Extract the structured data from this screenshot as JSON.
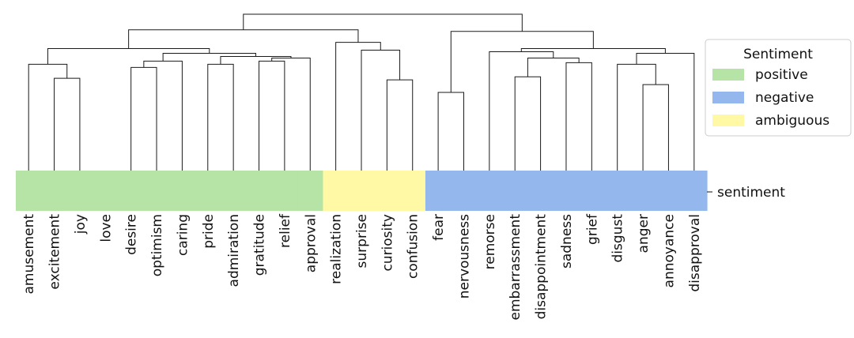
{
  "diagram": {
    "type": "dendrogram-with-category-strip",
    "row_label": "sentiment",
    "leaves": [
      {
        "name": "amusement",
        "sentiment": "positive"
      },
      {
        "name": "excitement",
        "sentiment": "positive"
      },
      {
        "name": "joy",
        "sentiment": "positive"
      },
      {
        "name": "love",
        "sentiment": "positive"
      },
      {
        "name": "desire",
        "sentiment": "positive"
      },
      {
        "name": "optimism",
        "sentiment": "positive"
      },
      {
        "name": "caring",
        "sentiment": "positive"
      },
      {
        "name": "pride",
        "sentiment": "positive"
      },
      {
        "name": "admiration",
        "sentiment": "positive"
      },
      {
        "name": "gratitude",
        "sentiment": "positive"
      },
      {
        "name": "relief",
        "sentiment": "positive"
      },
      {
        "name": "approval",
        "sentiment": "positive"
      },
      {
        "name": "realization",
        "sentiment": "ambiguous"
      },
      {
        "name": "surprise",
        "sentiment": "ambiguous"
      },
      {
        "name": "curiosity",
        "sentiment": "ambiguous"
      },
      {
        "name": "confusion",
        "sentiment": "ambiguous"
      },
      {
        "name": "fear",
        "sentiment": "negative"
      },
      {
        "name": "nervousness",
        "sentiment": "negative"
      },
      {
        "name": "remorse",
        "sentiment": "negative"
      },
      {
        "name": "embarrassment",
        "sentiment": "negative"
      },
      {
        "name": "disappointment",
        "sentiment": "negative"
      },
      {
        "name": "sadness",
        "sentiment": "negative"
      },
      {
        "name": "grief",
        "sentiment": "negative"
      },
      {
        "name": "disgust",
        "sentiment": "negative"
      },
      {
        "name": "anger",
        "sentiment": "negative"
      },
      {
        "name": "annoyance",
        "sentiment": "negative"
      },
      {
        "name": "disapproval",
        "sentiment": "negative"
      }
    ],
    "merges": [
      {
        "a": 1,
        "b": 2,
        "height": 0.59
      },
      {
        "a": 0,
        "b": 27,
        "height": 0.68
      },
      {
        "a": 4,
        "b": 5,
        "height": 0.66
      },
      {
        "a": 29,
        "b": 6,
        "height": 0.7
      },
      {
        "a": 7,
        "b": 8,
        "height": 0.68
      },
      {
        "a": 9,
        "b": 10,
        "height": 0.7
      },
      {
        "a": 32,
        "b": 11,
        "height": 0.72
      },
      {
        "a": 31,
        "b": 33,
        "height": 0.73
      },
      {
        "a": 30,
        "b": 34,
        "height": 0.75
      },
      {
        "a": 28,
        "b": 35,
        "height": 0.78
      },
      {
        "a": 14,
        "b": 15,
        "height": 0.58
      },
      {
        "a": 13,
        "b": 37,
        "height": 0.77
      },
      {
        "a": 12,
        "b": 38,
        "height": 0.82
      },
      {
        "a": 36,
        "b": 39,
        "height": 0.9
      },
      {
        "a": 16,
        "b": 17,
        "height": 0.5
      },
      {
        "a": 19,
        "b": 20,
        "height": 0.6
      },
      {
        "a": 21,
        "b": 22,
        "height": 0.69
      },
      {
        "a": 42,
        "b": 43,
        "height": 0.72
      },
      {
        "a": 18,
        "b": 44,
        "height": 0.76
      },
      {
        "a": 24,
        "b": 25,
        "height": 0.55
      },
      {
        "a": 23,
        "b": 46,
        "height": 0.68
      },
      {
        "a": 47,
        "b": 26,
        "height": 0.75
      },
      {
        "a": 45,
        "b": 48,
        "height": 0.78
      },
      {
        "a": 41,
        "b": 49,
        "height": 0.89
      },
      {
        "a": 50,
        "b": 40,
        "height": 1.0
      }
    ],
    "legend": {
      "title": "Sentiment",
      "entries": [
        {
          "key": "positive",
          "label": "positive",
          "color": "#b6e3a6"
        },
        {
          "key": "negative",
          "label": "negative",
          "color": "#94b8ee"
        },
        {
          "key": "ambiguous",
          "label": "ambiguous",
          "color": "#fff9a6"
        }
      ]
    }
  }
}
